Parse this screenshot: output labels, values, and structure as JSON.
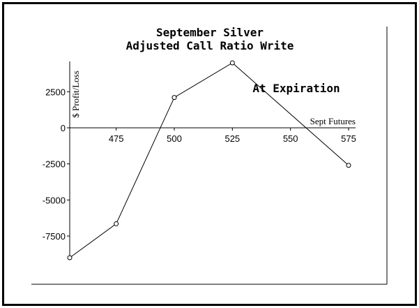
{
  "chart_data": {
    "type": "line",
    "title_lines": [
      "September Silver",
      "Adjusted Call Ratio Write"
    ],
    "xlabel": "Sept Futures",
    "ylabel": "$ Profit/Loss",
    "annotation": "At Expiration",
    "xlim": [
      455,
      575
    ],
    "ylim": [
      -9000,
      4500
    ],
    "x_ticks": [
      475,
      500,
      525,
      550,
      575
    ],
    "y_ticks": [
      2500,
      0,
      -2500,
      -5000,
      -7500
    ],
    "grid": false,
    "series": [
      {
        "x": [
          455,
          475,
          500,
          525,
          575
        ],
        "y": [
          -9000,
          -6650,
          2100,
          4500,
          -2600
        ]
      }
    ]
  }
}
